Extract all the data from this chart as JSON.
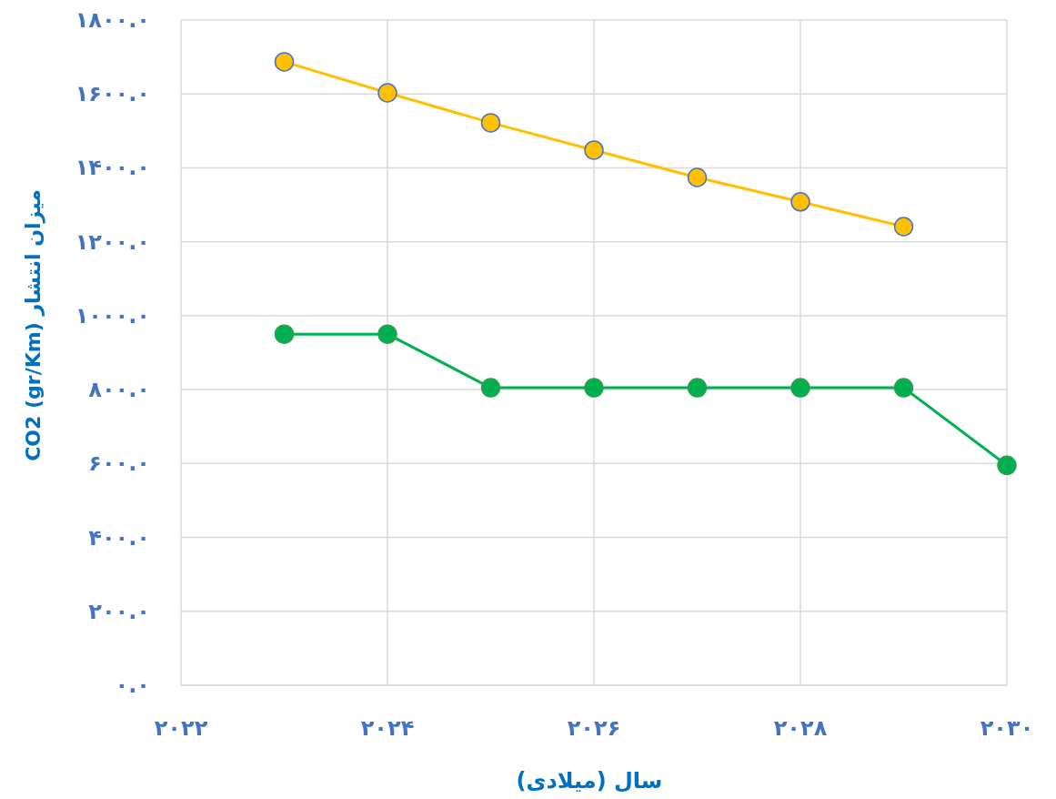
{
  "chart_data": {
    "type": "line",
    "xlabel": "سال (میلادی)",
    "ylabel": "میزان انتشار CO2 (gr/Km)",
    "x": [
      2023,
      2024,
      2025,
      2026,
      2027,
      2028,
      2029,
      2030
    ],
    "series": [
      {
        "color": "#ffc000",
        "values": [
          1687,
          1603,
          1522,
          1448,
          1374,
          1308,
          1241,
          null
        ]
      },
      {
        "color": "#00b050",
        "values": [
          950,
          950,
          805,
          805,
          805,
          805,
          805,
          595
        ]
      }
    ],
    "xlim": [
      2022,
      2030
    ],
    "xticks": [
      {
        "value": 2022,
        "label": "۲۰۲۲"
      },
      {
        "value": 2024,
        "label": "۲۰۲۴"
      },
      {
        "value": 2026,
        "label": "۲۰۲۶"
      },
      {
        "value": 2028,
        "label": "۲۰۲۸"
      },
      {
        "value": 2030,
        "label": "۲۰۳۰"
      }
    ],
    "ylim": [
      0,
      1800
    ],
    "yticks": [
      {
        "value": 0,
        "label": "۰.۰"
      },
      {
        "value": 200,
        "label": "۲۰۰.۰"
      },
      {
        "value": 400,
        "label": "۴۰۰.۰"
      },
      {
        "value": 600,
        "label": "۶۰۰.۰"
      },
      {
        "value": 800,
        "label": "۸۰۰.۰"
      },
      {
        "value": 1000,
        "label": "۱۰۰۰.۰"
      },
      {
        "value": 1200,
        "label": "۱۲۰۰.۰"
      },
      {
        "value": 1400,
        "label": "۱۴۰۰.۰"
      },
      {
        "value": 1600,
        "label": "۱۶۰۰.۰"
      },
      {
        "value": 1800,
        "label": "۱۸۰۰.۰"
      }
    ],
    "grid": true,
    "marker": "circle",
    "line_style": "solid"
  }
}
